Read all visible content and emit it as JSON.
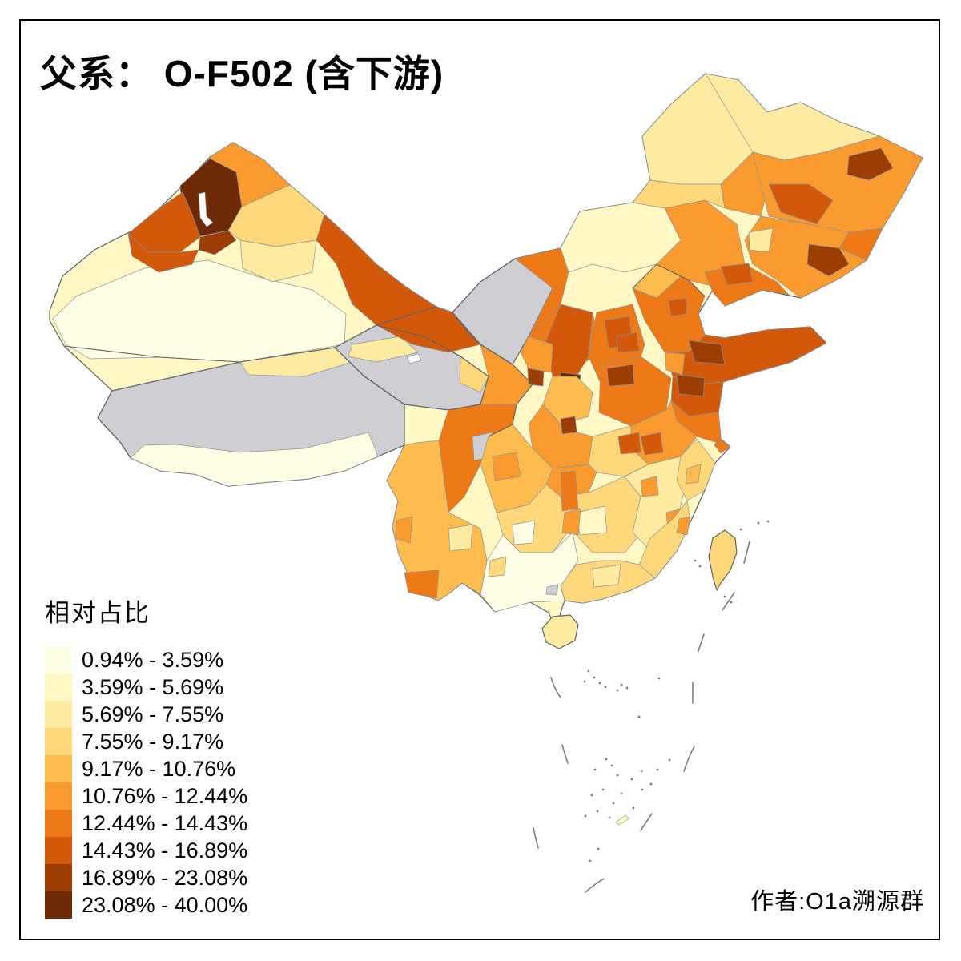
{
  "title": {
    "full": "父系： O-F502 (含下游)"
  },
  "legend": {
    "title": "相对占比",
    "classes": [
      {
        "label": "0.94% - 3.59%",
        "color": "#FFFFE5"
      },
      {
        "label": "3.59% - 5.69%",
        "color": "#FFF8C5"
      },
      {
        "label": "5.69% - 7.55%",
        "color": "#FEEBA2"
      },
      {
        "label": "7.55% - 9.17%",
        "color": "#FED87B"
      },
      {
        "label": "9.17% - 10.76%",
        "color": "#FEBC4F"
      },
      {
        "label": "10.76% - 12.44%",
        "color": "#FB9B2F"
      },
      {
        "label": "12.44% - 14.43%",
        "color": "#ED7A17"
      },
      {
        "label": "14.43% - 16.89%",
        "color": "#D2580A"
      },
      {
        "label": "16.89% - 23.08%",
        "color": "#9C3D04"
      },
      {
        "label": "23.08% - 40.00%",
        "color": "#6E2A06"
      }
    ]
  },
  "attribution": {
    "text": "作者:O1a溯源群"
  },
  "map": {
    "sea_color": "#FFFFFF",
    "nodata_color": "#CFCFD3",
    "lake_color": "#FFFFFF",
    "country_border_color": "#5E6166",
    "prefecture_border_color": "#8E9196",
    "sea_feature_color": "#7A7D82",
    "frame_color": "#000000",
    "regions": [
      {
        "name": "china-base",
        "class": "c2"
      },
      {
        "name": "tarim-basin-pale",
        "class": "c1"
      },
      {
        "name": "altay",
        "class": "c6"
      },
      {
        "name": "ili-bortala-dark",
        "class": "c10"
      },
      {
        "name": "tacheng",
        "class": "c8"
      },
      {
        "name": "bole-small",
        "class": "c9"
      },
      {
        "name": "ili-west",
        "class": "c8"
      },
      {
        "name": "changji-urumqi",
        "class": "c4"
      },
      {
        "name": "turpan",
        "class": "c3"
      },
      {
        "name": "hami",
        "class": "c8"
      },
      {
        "name": "sayram-lake",
        "class": "lake"
      },
      {
        "name": "tibet",
        "class": "nodata"
      },
      {
        "name": "tibet-south-strip",
        "class": "c1"
      },
      {
        "name": "tibet-north-strip",
        "class": "c3"
      },
      {
        "name": "qinghai",
        "class": "nodata"
      },
      {
        "name": "qaidam-pale",
        "class": "c3"
      },
      {
        "name": "qinghai-lake",
        "class": "lake"
      },
      {
        "name": "xining",
        "class": "c4"
      },
      {
        "name": "gansu-west",
        "class": "c8"
      },
      {
        "name": "gansu-corridor",
        "class": "c6"
      },
      {
        "name": "gansu-south",
        "class": "c4"
      },
      {
        "name": "gannan",
        "class": "c3"
      },
      {
        "name": "alxa",
        "class": "nodata"
      },
      {
        "name": "im-west-band",
        "class": "c7"
      },
      {
        "name": "ordos",
        "class": "c7"
      },
      {
        "name": "im-center-pale",
        "class": "c2"
      },
      {
        "name": "im-east",
        "class": "c6"
      },
      {
        "name": "hulunbuir",
        "class": "c3"
      },
      {
        "name": "hulunbuir-south",
        "class": "c4"
      },
      {
        "name": "hinggan",
        "class": "c6"
      },
      {
        "name": "heilongjiang-north",
        "class": "c3"
      },
      {
        "name": "heilongjiang-south",
        "class": "c6"
      },
      {
        "name": "harbin-suihua",
        "class": "c8"
      },
      {
        "name": "jiamusi-dark",
        "class": "c9"
      },
      {
        "name": "heilongjiang-east",
        "class": "c7"
      },
      {
        "name": "jilin",
        "class": "c6"
      },
      {
        "name": "jilin-west-pale",
        "class": "c3"
      },
      {
        "name": "yanbian-dark",
        "class": "c9"
      },
      {
        "name": "liaoning",
        "class": "c7"
      },
      {
        "name": "liaoning-north-dark",
        "class": "c8"
      },
      {
        "name": "hebei",
        "class": "c7"
      },
      {
        "name": "zhangjiakou",
        "class": "c5"
      },
      {
        "name": "beijing",
        "class": "c8"
      },
      {
        "name": "shanxi",
        "class": "c7"
      },
      {
        "name": "shanxi-mid-dark",
        "class": "c8"
      },
      {
        "name": "shaanxi-north",
        "class": "c8"
      },
      {
        "name": "yulin-dark",
        "class": "c9"
      },
      {
        "name": "guanzhong-darkest",
        "class": "c10"
      },
      {
        "name": "shaanxi-south",
        "class": "c5"
      },
      {
        "name": "hanzhong-dark",
        "class": "c9"
      },
      {
        "name": "ningxia",
        "class": "c6"
      },
      {
        "name": "shandong",
        "class": "c8"
      },
      {
        "name": "shandong-dark",
        "class": "c9"
      },
      {
        "name": "shandong-west",
        "class": "c6"
      },
      {
        "name": "henan",
        "class": "c7"
      },
      {
        "name": "henan-dark",
        "class": "c9"
      },
      {
        "name": "south-shanxi-dark",
        "class": "c8"
      },
      {
        "name": "jiangsu-north",
        "class": "c8"
      },
      {
        "name": "jiangsu-dark",
        "class": "c9"
      },
      {
        "name": "jiangsu-south",
        "class": "c7"
      },
      {
        "name": "anhui",
        "class": "c6"
      },
      {
        "name": "anhui-dark",
        "class": "c8"
      },
      {
        "name": "shanghai",
        "class": "c7"
      },
      {
        "name": "hubei-west",
        "class": "c6"
      },
      {
        "name": "hubei-east",
        "class": "c4"
      },
      {
        "name": "hubei-dark",
        "class": "c8"
      },
      {
        "name": "chongqing",
        "class": "c6"
      },
      {
        "name": "sichuan-west-band",
        "class": "c7"
      },
      {
        "name": "sichuan-gray-patch",
        "class": "nodata"
      },
      {
        "name": "sichuan-basin",
        "class": "c5"
      },
      {
        "name": "chengdu",
        "class": "c6"
      },
      {
        "name": "north-yunnan-dark",
        "class": "c8"
      },
      {
        "name": "guizhou",
        "class": "c4"
      },
      {
        "name": "guizhou-pale",
        "class": "c1"
      },
      {
        "name": "hunan",
        "class": "c4"
      },
      {
        "name": "hunan-pale",
        "class": "c2"
      },
      {
        "name": "xiangxi-orange",
        "class": "c7"
      },
      {
        "name": "guilin-strip",
        "class": "c6"
      },
      {
        "name": "jiangxi",
        "class": "c3"
      },
      {
        "name": "jiangxi-orange-1",
        "class": "c6"
      },
      {
        "name": "jiangxi-orange-2",
        "class": "c6"
      },
      {
        "name": "zhejiang",
        "class": "c4"
      },
      {
        "name": "zhejiang-orange",
        "class": "c5"
      },
      {
        "name": "fujian",
        "class": "c4"
      },
      {
        "name": "quanzhou-orange",
        "class": "c6"
      },
      {
        "name": "guangdong",
        "class": "c4"
      },
      {
        "name": "guangdong-pale",
        "class": "c3"
      },
      {
        "name": "guangxi",
        "class": "c1"
      },
      {
        "name": "guangxi-west-patch",
        "class": "c4"
      },
      {
        "name": "guangxi-gray-spot",
        "class": "nodata"
      },
      {
        "name": "yunnan",
        "class": "c5"
      },
      {
        "name": "yunnan-south",
        "class": "c7"
      },
      {
        "name": "yunnan-west",
        "class": "c6"
      },
      {
        "name": "yunnan-pale-patch",
        "class": "c3"
      },
      {
        "name": "hainan",
        "class": "c3"
      },
      {
        "name": "taiwan",
        "class": "c4"
      },
      {
        "name": "province-border-accent-1",
        "class": "accent-line"
      },
      {
        "name": "province-border-accent-2",
        "class": "accent-line"
      },
      {
        "name": "province-border-accent-3",
        "class": "accent-line"
      },
      {
        "name": "province-border-accent-4",
        "class": "accent-line"
      },
      {
        "name": "province-border-accent-5",
        "class": "accent-line"
      },
      {
        "name": "nine-dash-1",
        "class": "line"
      },
      {
        "name": "nine-dash-2",
        "class": "line"
      },
      {
        "name": "nine-dash-3",
        "class": "line"
      },
      {
        "name": "nine-dash-4",
        "class": "line"
      },
      {
        "name": "nine-dash-5",
        "class": "line"
      },
      {
        "name": "nine-dash-6",
        "class": "line"
      },
      {
        "name": "nine-dash-7",
        "class": "line"
      },
      {
        "name": "nine-dash-8",
        "class": "line"
      },
      {
        "name": "nine-dash-9",
        "class": "line"
      },
      {
        "name": "nine-dash-10",
        "class": "line"
      },
      {
        "name": "south-sea-islet-sliver",
        "class": "c2"
      },
      {
        "name": "south-sea-islets",
        "class": "islets"
      }
    ]
  }
}
